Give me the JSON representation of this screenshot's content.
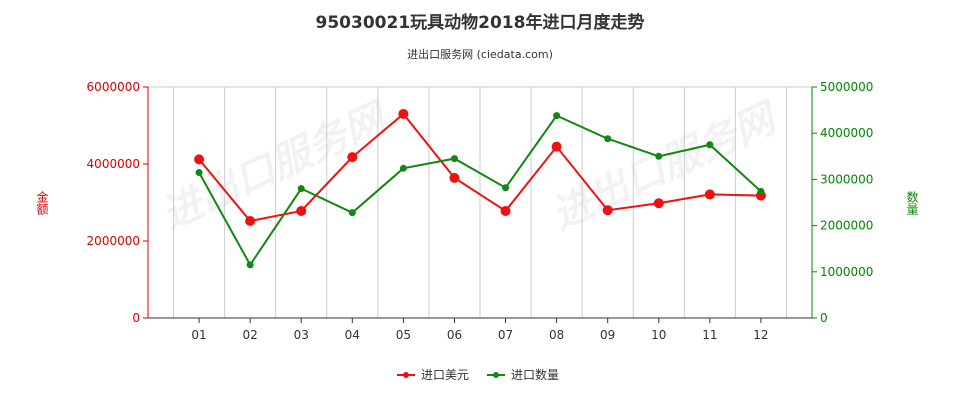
{
  "title": "95030021玩具动物2018年进口月度走势",
  "subtitle": "进出口服务网 (ciedata.com)",
  "watermark": "进出口服务网",
  "colors": {
    "left_axis": "#dd0000",
    "right_axis": "#008800",
    "series_amount": "#ee1111",
    "series_qty": "#118811",
    "grid": "#cccccc"
  },
  "chart_data": {
    "type": "line",
    "categories": [
      "01",
      "02",
      "03",
      "04",
      "05",
      "06",
      "07",
      "08",
      "09",
      "10",
      "11",
      "12"
    ],
    "left_axis": {
      "label": "金额",
      "ylim": [
        0,
        6000000
      ],
      "ticks": [
        "0",
        "2000000",
        "4000000",
        "6000000"
      ],
      "tick_values": [
        0,
        2000000,
        4000000,
        6000000
      ]
    },
    "right_axis": {
      "label": "数量",
      "ylim": [
        0,
        5000000
      ],
      "ticks": [
        "0",
        "1000000",
        "2000000",
        "3000000",
        "4000000",
        "5000000"
      ],
      "tick_values": [
        0,
        1000000,
        2000000,
        3000000,
        4000000,
        5000000
      ]
    },
    "series": [
      {
        "name": "进口美元",
        "axis": "left",
        "values": [
          4120000,
          2520000,
          2780000,
          4180000,
          5300000,
          3640000,
          2780000,
          4450000,
          2800000,
          2980000,
          3210000,
          3180000
        ]
      },
      {
        "name": "进口数量",
        "axis": "right",
        "values": [
          3150000,
          1150000,
          2800000,
          2280000,
          3240000,
          3450000,
          2820000,
          4380000,
          3880000,
          3500000,
          3750000,
          2740000
        ]
      }
    ],
    "grid": "vertical",
    "legend_position": "bottom-center"
  }
}
